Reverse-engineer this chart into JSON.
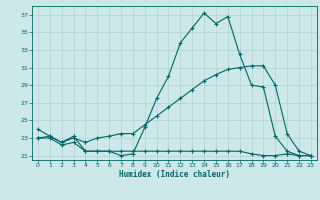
{
  "title": "",
  "xlabel": "Humidex (Indice chaleur)",
  "ylabel": "",
  "background_color": "#cce8e8",
  "grid_color": "#b0d0d0",
  "line_color": "#006666",
  "xlim": [
    -0.5,
    23.5
  ],
  "ylim": [
    20.5,
    38.0
  ],
  "xticks": [
    0,
    1,
    2,
    3,
    4,
    5,
    6,
    7,
    8,
    9,
    10,
    11,
    12,
    13,
    14,
    15,
    16,
    17,
    18,
    19,
    20,
    21,
    22,
    23
  ],
  "yticks": [
    21,
    23,
    25,
    27,
    29,
    31,
    33,
    35,
    37
  ],
  "series1_x": [
    0,
    1,
    2,
    3,
    4,
    5,
    6,
    7,
    8,
    9,
    10,
    11,
    12,
    13,
    14,
    15,
    16,
    17,
    18,
    19,
    20,
    21,
    22,
    23
  ],
  "series1_y": [
    24.0,
    23.2,
    22.5,
    23.2,
    21.5,
    21.5,
    21.5,
    21.0,
    21.2,
    24.2,
    27.5,
    30.0,
    33.8,
    35.5,
    37.2,
    36.0,
    36.8,
    32.5,
    29.0,
    28.8,
    23.2,
    21.5,
    21.0,
    21.0
  ],
  "series2_x": [
    0,
    1,
    2,
    3,
    4,
    5,
    6,
    7,
    8,
    9,
    10,
    11,
    12,
    13,
    14,
    15,
    16,
    17,
    18,
    19,
    20,
    21,
    22,
    23
  ],
  "series2_y": [
    23.0,
    23.2,
    22.5,
    23.0,
    22.5,
    23.0,
    23.2,
    23.5,
    23.5,
    24.5,
    25.5,
    26.5,
    27.5,
    28.5,
    29.5,
    30.2,
    30.8,
    31.0,
    31.2,
    31.2,
    29.0,
    23.5,
    21.5,
    21.0
  ],
  "series3_x": [
    0,
    1,
    2,
    3,
    4,
    5,
    6,
    7,
    8,
    9,
    10,
    11,
    12,
    13,
    14,
    15,
    16,
    17,
    18,
    19,
    20,
    21,
    22,
    23
  ],
  "series3_y": [
    23.0,
    23.0,
    22.2,
    22.5,
    21.5,
    21.5,
    21.5,
    21.5,
    21.5,
    21.5,
    21.5,
    21.5,
    21.5,
    21.5,
    21.5,
    21.5,
    21.5,
    21.5,
    21.2,
    21.0,
    21.0,
    21.2,
    21.0,
    21.0
  ]
}
